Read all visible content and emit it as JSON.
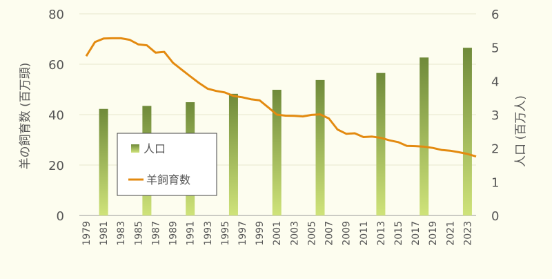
{
  "colors": {
    "background": "#fdfdef",
    "bar_light": "#cfe37a",
    "bar_dark": "#6f8a3a",
    "line": "#e38a10",
    "axis_text": "#555555",
    "legend_border": "#444444"
  },
  "chart_data": {
    "type": "bar+line",
    "title": "",
    "xlabel": "",
    "ylabel_left": "羊の飼育数 (百万頭)",
    "ylabel_right": "人口 (百万人)",
    "ylim_left": [
      0,
      80
    ],
    "ylim_right": [
      0,
      6
    ],
    "yticks_left": [
      "0",
      "20",
      "40",
      "60",
      "80"
    ],
    "yticks_right": [
      "0",
      "1",
      "2",
      "3",
      "4",
      "5",
      "6"
    ],
    "x_tick_labels": [
      "1979",
      "1981",
      "1983",
      "1985",
      "1987",
      "1989",
      "1991",
      "1993",
      "1995",
      "1997",
      "1999",
      "2001",
      "2003",
      "2005",
      "2007",
      "2009",
      "2011",
      "2013",
      "2015",
      "2017",
      "2019",
      "2021",
      "2023"
    ],
    "x_range": [
      1979,
      2024
    ],
    "legend_placement": "center-left",
    "grid": "horizontal",
    "series": [
      {
        "name": "人口",
        "type": "bar",
        "axis": "right",
        "x": [
          1981,
          1986,
          1991,
          1996,
          2001,
          2006,
          2013,
          2018,
          2023
        ],
        "values": [
          3.17,
          3.26,
          3.37,
          3.62,
          3.74,
          4.03,
          4.24,
          4.7,
          4.99
        ]
      },
      {
        "name": "羊飼育数",
        "type": "line",
        "axis": "left",
        "x": [
          1979,
          1980,
          1981,
          1982,
          1983,
          1984,
          1985,
          1986,
          1987,
          1988,
          1989,
          1990,
          1991,
          1992,
          1993,
          1994,
          1995,
          1996,
          1997,
          1998,
          1999,
          2000,
          2001,
          2002,
          2003,
          2004,
          2005,
          2006,
          2007,
          2008,
          2009,
          2010,
          2011,
          2012,
          2013,
          2014,
          2015,
          2016,
          2017,
          2018,
          2019,
          2020,
          2021,
          2022,
          2023,
          2024
        ],
        "values": [
          63.2,
          68.8,
          70.2,
          70.3,
          70.3,
          69.7,
          67.9,
          67.5,
          64.6,
          64.9,
          60.6,
          57.9,
          55.2,
          52.6,
          50.3,
          49.4,
          48.8,
          47.4,
          46.9,
          46.1,
          45.7,
          42.9,
          40.0,
          39.6,
          39.5,
          39.3,
          39.9,
          40.1,
          38.5,
          34.1,
          32.4,
          32.6,
          31.1,
          31.3,
          30.8,
          29.8,
          29.1,
          27.6,
          27.5,
          27.3,
          26.8,
          26.0,
          25.7,
          25.1,
          24.4,
          23.4
        ]
      }
    ]
  }
}
